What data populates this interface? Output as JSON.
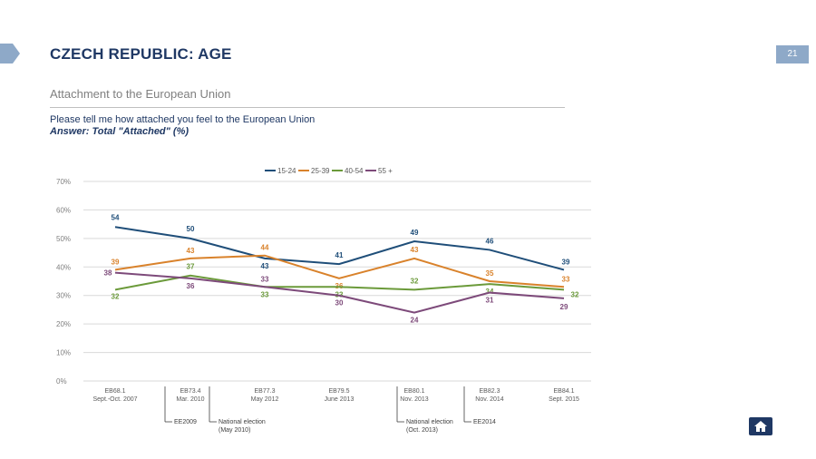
{
  "header": {
    "title": "CZECH REPUBLIC: AGE",
    "page_number": "21",
    "subtitle": "Attachment to the European Union",
    "question": "Please tell me how attached you feel to the European Union",
    "answer": "Answer: Total \"Attached\" (%)"
  },
  "chart_data": {
    "type": "line",
    "categories": [
      [
        "EB68.1",
        "Sept.-Oct. 2007"
      ],
      [
        "EB73.4",
        "Mar. 2010"
      ],
      [
        "EB77.3",
        "May 2012"
      ],
      [
        "EB79.5",
        "June 2013"
      ],
      [
        "EB80.1",
        "Nov. 2013"
      ],
      [
        "EB82.3",
        "Nov. 2014"
      ],
      [
        "EB84.1",
        "Sept. 2015"
      ]
    ],
    "series": [
      {
        "name": "15-24",
        "color": "#1f4e79",
        "values": [
          54,
          50,
          43,
          41,
          49,
          46,
          39
        ]
      },
      {
        "name": "25-39",
        "color": "#d9822b",
        "values": [
          39,
          43,
          44,
          36,
          43,
          35,
          33
        ]
      },
      {
        "name": "40-54",
        "color": "#6b9a3a",
        "values": [
          32,
          37,
          33,
          33,
          32,
          34,
          32
        ]
      },
      {
        "name": "55 +",
        "color": "#7d4a7a",
        "values": [
          38,
          36,
          33,
          30,
          24,
          31,
          29
        ]
      }
    ],
    "labels": {
      "15-24": [
        "54",
        "50",
        "43",
        "41",
        "49",
        "46",
        "39"
      ],
      "25-39": [
        "39",
        "43",
        "44",
        "36",
        "43",
        "35",
        "33"
      ],
      "40-54": [
        "32",
        "37",
        "33",
        "33",
        "32",
        "34",
        "32"
      ],
      "55 +": [
        "38",
        "36",
        "33",
        "30",
        "24",
        "31",
        "29"
      ]
    },
    "ylim": [
      0,
      70
    ],
    "yticks": [
      "0%",
      "10%",
      "20%",
      "30%",
      "40%",
      "50%",
      "60%",
      "70%"
    ],
    "grid": true,
    "legend": "top-center",
    "events": [
      {
        "after_index": 0,
        "lines": [
          "EE2009"
        ]
      },
      {
        "after_index": 1,
        "lines": [
          "National election",
          "(May 2010)"
        ]
      },
      {
        "after_index": 4,
        "lines": [
          "National election",
          "(Oct. 2013)"
        ]
      },
      {
        "after_index": 5,
        "lines": [
          "EE2014"
        ]
      }
    ]
  }
}
